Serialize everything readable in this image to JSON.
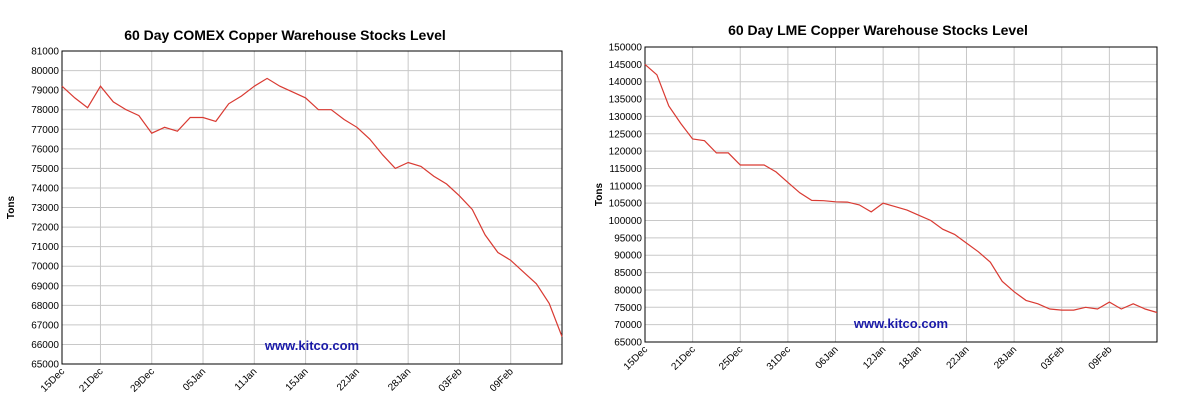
{
  "chart_data": [
    {
      "type": "line",
      "title": "60 Day COMEX Copper Warehouse Stocks Level",
      "ylabel": "Tons",
      "annotation": "www.kitco.com",
      "categories": [
        "15Dec",
        null,
        null,
        "21Dec",
        null,
        null,
        null,
        "29Dec",
        null,
        null,
        null,
        "05Jan",
        null,
        null,
        null,
        "11Jan",
        null,
        null,
        null,
        "15Jan",
        null,
        null,
        null,
        "22Jan",
        null,
        null,
        null,
        "28Jan",
        null,
        null,
        null,
        "03Feb",
        null,
        null,
        null,
        "09Feb",
        null,
        null,
        null,
        null
      ],
      "series": [
        {
          "name": "COMEX",
          "color": "#d93a32",
          "values": [
            79200,
            78600,
            78100,
            79200,
            78400,
            78000,
            77700,
            76800,
            77100,
            76900,
            77600,
            77600,
            77400,
            78300,
            78700,
            79200,
            79600,
            79200,
            78900,
            78600,
            78000,
            78000,
            77500,
            77100,
            76500,
            75700,
            75000,
            75300,
            75100,
            74600,
            74200,
            73600,
            72900,
            71600,
            70700,
            70300,
            69700,
            69100,
            68100,
            66400
          ]
        }
      ],
      "ylim": [
        65000,
        81000
      ],
      "yticks": [
        65000,
        66000,
        67000,
        68000,
        69000,
        70000,
        71000,
        72000,
        73000,
        74000,
        75000,
        76000,
        77000,
        78000,
        79000,
        80000,
        81000
      ],
      "grid": true
    },
    {
      "type": "line",
      "title": "60 Day LME Copper Warehouse Stocks Level",
      "ylabel": "Tons",
      "annotation": "www.kitco.com",
      "categories": [
        "15Dec",
        null,
        null,
        null,
        "21Dec",
        null,
        null,
        null,
        "25Dec",
        null,
        null,
        null,
        "31Dec",
        null,
        null,
        null,
        "06Jan",
        null,
        null,
        null,
        "12Jan",
        null,
        null,
        "18Jan",
        null,
        null,
        null,
        "22Jan",
        null,
        null,
        null,
        "28Jan",
        null,
        null,
        null,
        "03Feb",
        null,
        null,
        null,
        "09Feb",
        null,
        null,
        null,
        null
      ],
      "series": [
        {
          "name": "LME",
          "color": "#d93a32",
          "values": [
            145000,
            142000,
            133000,
            128000,
            123500,
            123000,
            119500,
            119500,
            116000,
            116000,
            116000,
            114000,
            111000,
            108000,
            105800,
            105700,
            105400,
            105300,
            104500,
            102500,
            105000,
            104000,
            103000,
            101500,
            100000,
            97500,
            96000,
            93500,
            91000,
            88000,
            82500,
            79500,
            77000,
            76000,
            74500,
            74200,
            74200,
            75000,
            74500,
            76500,
            74500,
            76000,
            74500,
            73500
          ]
        }
      ],
      "ylim": [
        65000,
        150000
      ],
      "yticks": [
        65000,
        70000,
        75000,
        80000,
        85000,
        90000,
        95000,
        100000,
        105000,
        110000,
        115000,
        120000,
        125000,
        130000,
        135000,
        140000,
        145000,
        150000
      ],
      "grid": true
    }
  ]
}
